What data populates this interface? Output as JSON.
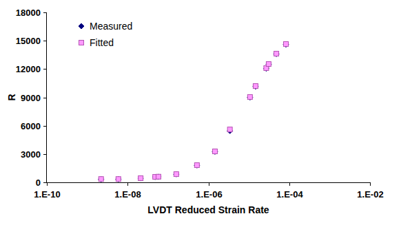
{
  "chart_data": {
    "type": "scatter",
    "x_label": "LVDT Reduced Strain Rate",
    "y_label": "R",
    "log": "x",
    "grid": false,
    "legend": "top-left",
    "x": [
      2.2e-09,
      5.9e-09,
      2.1e-08,
      4.8e-08,
      5.8e-08,
      1.6e-07,
      5.2e-07,
      1.45e-06,
      3.4e-06,
      1.07e-05,
      1.47e-05,
      2.7e-05,
      3.1e-05,
      4.8e-05,
      8.3e-05
    ],
    "series": [
      {
        "name": "Measured",
        "color": "#000080",
        "marker": "diamond",
        "values": [
          330,
          340,
          430,
          570,
          590,
          860,
          1800,
          3250,
          5450,
          9000,
          10150,
          12050,
          12500,
          13600,
          14600
        ]
      },
      {
        "name": "Fitted",
        "color": "#ff99ff",
        "marker": "square",
        "values": [
          350,
          350,
          440,
          580,
          600,
          870,
          1820,
          3280,
          5600,
          9040,
          10200,
          12100,
          12530,
          13630,
          14650
        ]
      }
    ],
    "xlim": [
      1e-10,
      0.01
    ],
    "xticks": [
      {
        "value": 1e-10,
        "label": "1.E-10"
      },
      {
        "value": 1e-08,
        "label": "1.E-08"
      },
      {
        "value": 1e-06,
        "label": "1.E-06"
      },
      {
        "value": 0.0001,
        "label": "1.E-04"
      },
      {
        "value": 0.01,
        "label": "1.E-02"
      }
    ],
    "ylim": [
      0,
      18000
    ],
    "yticks": [
      0,
      3000,
      6000,
      9000,
      12000,
      15000,
      18000
    ]
  }
}
